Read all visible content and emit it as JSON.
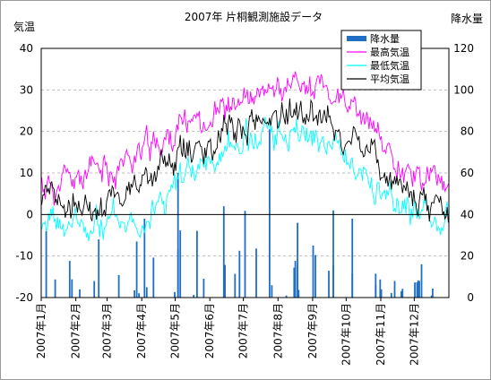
{
  "chart_data": {
    "type": "line",
    "title": "2007年 片桐観測施設データ",
    "ylabel_left": "気温",
    "ylabel_right": "降水量",
    "ylim_left": [
      -20,
      40
    ],
    "ylim_right": [
      0,
      120
    ],
    "yticks_left": [
      "40",
      "30",
      "20",
      "10",
      "0",
      "-10",
      "-20"
    ],
    "yticks_right": [
      "120",
      "100",
      "80",
      "60",
      "40",
      "20",
      "0"
    ],
    "x_tick_labels": [
      "2007年1月",
      "2007年2月",
      "2007年3月",
      "2007年4月",
      "2007年5月",
      "2007年6月",
      "2007年7月",
      "2007年8月",
      "2007年9月",
      "2007年10月",
      "2007年11月",
      "2007年12月"
    ],
    "x_start": "2007-01-01",
    "x_end": "2007-12-31",
    "grid": true,
    "legend_position": "top-right",
    "legend": [
      {
        "name": "降水量",
        "color": "#1f6fc4",
        "kind": "bar"
      },
      {
        "name": "最高気温",
        "color": "#ff00ff",
        "kind": "line"
      },
      {
        "name": "最低気温",
        "color": "#00ffff",
        "kind": "line"
      },
      {
        "name": "平均気温",
        "color": "#000000",
        "kind": "line"
      }
    ],
    "series": [
      {
        "name": "最高気温",
        "axis": "left",
        "monthly_values": [
          7,
          9,
          13,
          17,
          23,
          26,
          27,
          32,
          29,
          22,
          13,
          8
        ]
      },
      {
        "name": "最低気温",
        "axis": "left",
        "monthly_values": [
          -3,
          -3,
          -1,
          3,
          9,
          16,
          19,
          21,
          18,
          10,
          1,
          -2
        ]
      },
      {
        "name": "平均気温",
        "axis": "left",
        "monthly_values": [
          1,
          2,
          6,
          10,
          16,
          20,
          22,
          26,
          23,
          15,
          7,
          2
        ]
      },
      {
        "name": "降水量",
        "axis": "right",
        "monthly_values": [
          32,
          28,
          27,
          38,
          60,
          44,
          81,
          36,
          42,
          38,
          8,
          16
        ]
      }
    ]
  }
}
